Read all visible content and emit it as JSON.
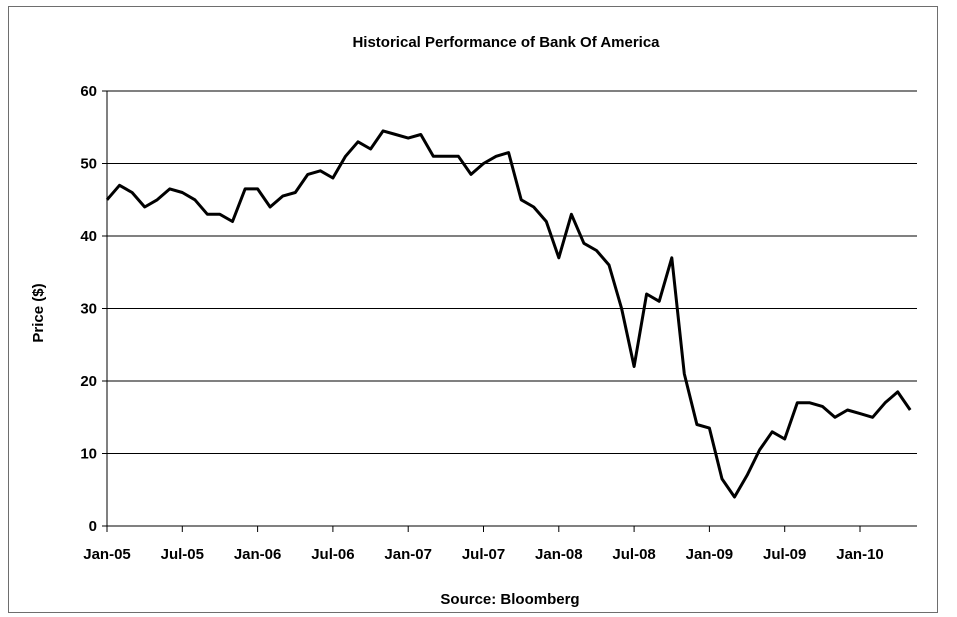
{
  "chart_data": {
    "type": "line",
    "title": "Historical Performance of Bank Of America",
    "xlabel": "",
    "ylabel": "Price ($)",
    "source": "Source: Bloomberg",
    "ylim": [
      0,
      60
    ],
    "yticks": [
      0,
      10,
      20,
      30,
      40,
      50,
      60
    ],
    "x_tick_labels": [
      "Jan-05",
      "Jul-05",
      "Jan-06",
      "Jul-06",
      "Jan-07",
      "Jul-07",
      "Jan-08",
      "Jul-08",
      "Jan-09",
      "Jul-09",
      "Jan-10"
    ],
    "x_range": [
      "2005-01",
      "2010-05"
    ],
    "grid": "horizontal",
    "line_color": "#000000",
    "series": [
      {
        "x": [
          "2005-01",
          "2005-02",
          "2005-03",
          "2005-04",
          "2005-05",
          "2005-06",
          "2005-07",
          "2005-08",
          "2005-09",
          "2005-10",
          "2005-11",
          "2005-12",
          "2006-01",
          "2006-02",
          "2006-03",
          "2006-04",
          "2006-05",
          "2006-06",
          "2006-07",
          "2006-08",
          "2006-09",
          "2006-10",
          "2006-11",
          "2006-12",
          "2007-01",
          "2007-02",
          "2007-03",
          "2007-04",
          "2007-05",
          "2007-06",
          "2007-07",
          "2007-08",
          "2007-09",
          "2007-10",
          "2007-11",
          "2007-12",
          "2008-01",
          "2008-02",
          "2008-03",
          "2008-04",
          "2008-05",
          "2008-06",
          "2008-07",
          "2008-08",
          "2008-09",
          "2008-10",
          "2008-11",
          "2008-12",
          "2009-01",
          "2009-02",
          "2009-03",
          "2009-04",
          "2009-05",
          "2009-06",
          "2009-07",
          "2009-08",
          "2009-09",
          "2009-10",
          "2009-11",
          "2009-12",
          "2010-01",
          "2010-02",
          "2010-03",
          "2010-04",
          "2010-05"
        ],
        "y": [
          45,
          47,
          46,
          44,
          45,
          46.5,
          46,
          45,
          43,
          43,
          42,
          46.5,
          46.5,
          44,
          45.5,
          46,
          48.5,
          49,
          48,
          51,
          53,
          52,
          54.5,
          54,
          53.5,
          54,
          51,
          51,
          51,
          48.5,
          50,
          51,
          51.5,
          45,
          44,
          42,
          37,
          43,
          39,
          38,
          36,
          30,
          22,
          32,
          31,
          37,
          21,
          14,
          13.5,
          6.5,
          4,
          7,
          10.5,
          13,
          12,
          17,
          17,
          16.5,
          15,
          16,
          15.5,
          15,
          17,
          18.5,
          16
        ]
      }
    ]
  }
}
